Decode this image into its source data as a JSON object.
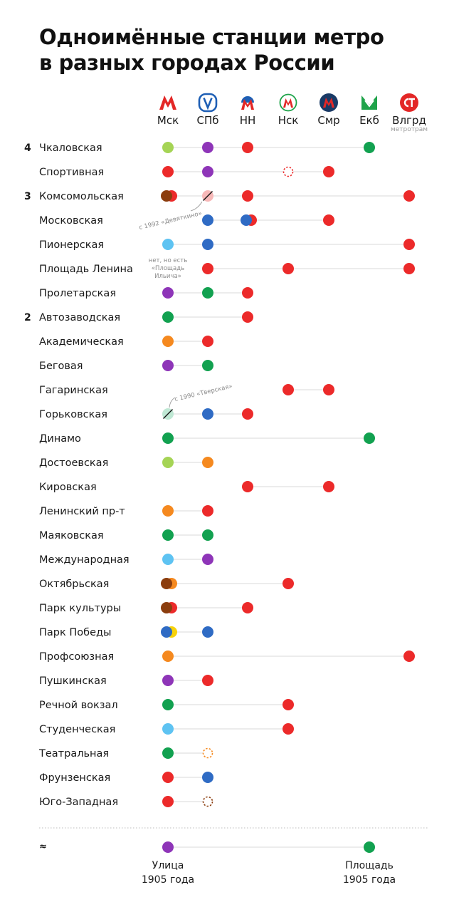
{
  "title": {
    "line1": "Одноимённые станции метро",
    "line2": "в разных городах России"
  },
  "cities": [
    {
      "key": "msk",
      "label": "Мск",
      "logo": "moscow-metro-logo-icon",
      "color": "#e32726"
    },
    {
      "key": "spb",
      "label": "СПб",
      "logo": "spb-metro-logo-icon",
      "color": "#1e5fb5"
    },
    {
      "key": "nn",
      "label": "НН",
      "logo": "nizhny-novgorod-metro-logo-icon",
      "color": "#e32726"
    },
    {
      "key": "nsk",
      "label": "Нск",
      "logo": "novosibirsk-metro-logo-icon",
      "color": "#e32726"
    },
    {
      "key": "smr",
      "label": "Смр",
      "logo": "samara-metro-logo-icon",
      "color": "#e32726"
    },
    {
      "key": "ekb",
      "label": "Екб",
      "logo": "yekaterinburg-metro-logo-icon",
      "color": "#1fa34a"
    },
    {
      "key": "vlg",
      "label": "Влгрд",
      "note": "метротрам",
      "logo": "volgograd-metrotram-logo-icon",
      "color": "#e32726"
    }
  ],
  "colors": {
    "red": "#ec2a2a",
    "green": "#12a150",
    "lightgreen": "#a5d455",
    "purple": "#8e35b8",
    "blue": "#2f6bc4",
    "lightblue": "#5ec3f2",
    "orange": "#f5891f",
    "brown": "#8b3d0e",
    "yellow": "#f7d20a",
    "pink": "#f7b8b8",
    "mint": "#bfe8d4",
    "line": "#ececec"
  },
  "chart_data": {
    "type": "table",
    "rows": [
      {
        "count": "4",
        "station": "Чкаловская",
        "marks": [
          {
            "city": "msk",
            "colors": [
              "lightgreen"
            ]
          },
          {
            "city": "spb",
            "colors": [
              "purple"
            ]
          },
          {
            "city": "nn",
            "colors": [
              "red"
            ]
          },
          {
            "city": "ekb",
            "colors": [
              "green"
            ]
          }
        ]
      },
      {
        "station": "Спортивная",
        "marks": [
          {
            "city": "msk",
            "colors": [
              "red"
            ]
          },
          {
            "city": "spb",
            "colors": [
              "purple"
            ]
          },
          {
            "city": "nsk",
            "colors": [
              "red"
            ],
            "style": "planned"
          },
          {
            "city": "smr",
            "colors": [
              "red"
            ]
          }
        ]
      },
      {
        "count": "3",
        "station": "Комсомольская",
        "marks": [
          {
            "city": "msk",
            "colors": [
              "brown",
              "red"
            ]
          },
          {
            "city": "spb",
            "colors": [
              "pink"
            ],
            "style": "renamed"
          },
          {
            "city": "nn",
            "colors": [
              "red"
            ]
          },
          {
            "city": "vlg",
            "colors": [
              "red"
            ]
          }
        ]
      },
      {
        "station": "Московская",
        "marks": [
          {
            "city": "spb",
            "colors": [
              "blue"
            ]
          },
          {
            "city": "nn",
            "colors": [
              "blue",
              "red"
            ]
          },
          {
            "city": "smr",
            "colors": [
              "red"
            ]
          }
        ]
      },
      {
        "station": "Пионерская",
        "marks": [
          {
            "city": "msk",
            "colors": [
              "lightblue"
            ]
          },
          {
            "city": "spb",
            "colors": [
              "blue"
            ]
          },
          {
            "city": "vlg",
            "colors": [
              "red"
            ]
          }
        ]
      },
      {
        "station": "Площадь Ленина",
        "marks": [
          {
            "city": "spb",
            "colors": [
              "red"
            ]
          },
          {
            "city": "nsk",
            "colors": [
              "red"
            ]
          },
          {
            "city": "vlg",
            "colors": [
              "red"
            ]
          }
        ]
      },
      {
        "station": "Пролетарская",
        "marks": [
          {
            "city": "msk",
            "colors": [
              "purple"
            ]
          },
          {
            "city": "spb",
            "colors": [
              "green"
            ]
          },
          {
            "city": "nn",
            "colors": [
              "red"
            ]
          }
        ]
      },
      {
        "count": "2",
        "station": "Автозаводская",
        "marks": [
          {
            "city": "msk",
            "colors": [
              "green"
            ]
          },
          {
            "city": "nn",
            "colors": [
              "red"
            ]
          }
        ]
      },
      {
        "station": "Академическая",
        "marks": [
          {
            "city": "msk",
            "colors": [
              "orange"
            ]
          },
          {
            "city": "spb",
            "colors": [
              "red"
            ]
          }
        ]
      },
      {
        "station": "Беговая",
        "marks": [
          {
            "city": "msk",
            "colors": [
              "purple"
            ]
          },
          {
            "city": "spb",
            "colors": [
              "green"
            ]
          }
        ]
      },
      {
        "station": "Гагаринская",
        "marks": [
          {
            "city": "nsk",
            "colors": [
              "red"
            ]
          },
          {
            "city": "smr",
            "colors": [
              "red"
            ]
          }
        ]
      },
      {
        "station": "Горьковская",
        "marks": [
          {
            "city": "msk",
            "colors": [
              "mint"
            ],
            "style": "renamed"
          },
          {
            "city": "spb",
            "colors": [
              "blue"
            ]
          },
          {
            "city": "nn",
            "colors": [
              "red"
            ]
          }
        ]
      },
      {
        "station": "Динамо",
        "marks": [
          {
            "city": "msk",
            "colors": [
              "green"
            ]
          },
          {
            "city": "ekb",
            "colors": [
              "green"
            ]
          }
        ]
      },
      {
        "station": "Достоевская",
        "marks": [
          {
            "city": "msk",
            "colors": [
              "lightgreen"
            ]
          },
          {
            "city": "spb",
            "colors": [
              "orange"
            ]
          }
        ]
      },
      {
        "station": "Кировская",
        "marks": [
          {
            "city": "nn",
            "colors": [
              "red"
            ]
          },
          {
            "city": "smr",
            "colors": [
              "red"
            ]
          }
        ]
      },
      {
        "station": "Ленинский пр-т",
        "marks": [
          {
            "city": "msk",
            "colors": [
              "orange"
            ]
          },
          {
            "city": "spb",
            "colors": [
              "red"
            ]
          }
        ]
      },
      {
        "station": "Маяковская",
        "marks": [
          {
            "city": "msk",
            "colors": [
              "green"
            ]
          },
          {
            "city": "spb",
            "colors": [
              "green"
            ]
          }
        ]
      },
      {
        "station": "Международная",
        "marks": [
          {
            "city": "msk",
            "colors": [
              "lightblue"
            ]
          },
          {
            "city": "spb",
            "colors": [
              "purple"
            ]
          }
        ]
      },
      {
        "station": "Октябрьская",
        "marks": [
          {
            "city": "msk",
            "colors": [
              "brown",
              "orange"
            ]
          },
          {
            "city": "nsk",
            "colors": [
              "red"
            ]
          }
        ]
      },
      {
        "station": "Парк культуры",
        "marks": [
          {
            "city": "msk",
            "colors": [
              "brown",
              "red"
            ]
          },
          {
            "city": "nn",
            "colors": [
              "red"
            ]
          }
        ]
      },
      {
        "station": "Парк Победы",
        "marks": [
          {
            "city": "msk",
            "colors": [
              "blue",
              "yellow"
            ]
          },
          {
            "city": "spb",
            "colors": [
              "blue"
            ]
          }
        ]
      },
      {
        "station": "Профсоюзная",
        "marks": [
          {
            "city": "msk",
            "colors": [
              "orange"
            ]
          },
          {
            "city": "vlg",
            "colors": [
              "red"
            ]
          }
        ]
      },
      {
        "station": "Пушкинская",
        "marks": [
          {
            "city": "msk",
            "colors": [
              "purple"
            ]
          },
          {
            "city": "spb",
            "colors": [
              "red"
            ]
          }
        ]
      },
      {
        "station": "Речной вокзал",
        "marks": [
          {
            "city": "msk",
            "colors": [
              "green"
            ]
          },
          {
            "city": "nsk",
            "colors": [
              "red"
            ]
          }
        ]
      },
      {
        "station": "Студенческая",
        "marks": [
          {
            "city": "msk",
            "colors": [
              "lightblue"
            ]
          },
          {
            "city": "nsk",
            "colors": [
              "red"
            ]
          }
        ]
      },
      {
        "station": "Театральная",
        "marks": [
          {
            "city": "msk",
            "colors": [
              "green"
            ]
          },
          {
            "city": "spb",
            "colors": [
              "orange"
            ],
            "style": "planned"
          }
        ]
      },
      {
        "station": "Фрунзенская",
        "marks": [
          {
            "city": "msk",
            "colors": [
              "red"
            ]
          },
          {
            "city": "spb",
            "colors": [
              "blue"
            ]
          }
        ]
      },
      {
        "station": "Юго-Западная",
        "marks": [
          {
            "city": "msk",
            "colors": [
              "red"
            ]
          },
          {
            "city": "spb",
            "colors": [
              "brown"
            ],
            "style": "planned"
          }
        ]
      }
    ],
    "annotations": [
      {
        "row": "Комсомольская",
        "city": "spb",
        "text": "с 1992 «Девяткино»"
      },
      {
        "row": "Площадь Ленина",
        "city": "msk",
        "text": "нет, но есть «Площадь Ильича»"
      },
      {
        "row": "Горьковская",
        "city": "msk",
        "text": "с 1990 «Тверская»"
      }
    ],
    "footer": {
      "symbol": "≈",
      "left": {
        "city": "msk",
        "color": "purple",
        "line1": "Улица",
        "line2": "1905 года"
      },
      "right": {
        "city": "ekb",
        "color": "green",
        "line1": "Площадь",
        "line2": "1905 года"
      }
    }
  }
}
